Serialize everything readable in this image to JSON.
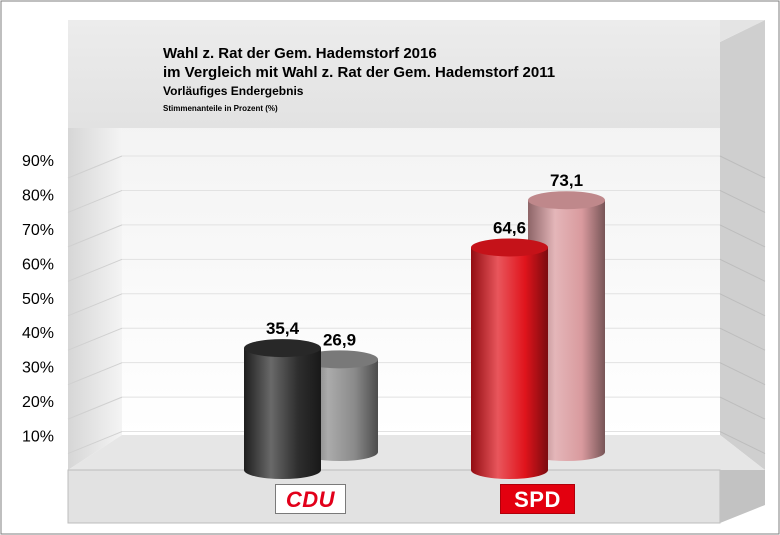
{
  "title_lines": [
    "Wahl z. Rat der Gem. Hademstorf 2016",
    "im Vergleich mit Wahl z. Rat der Gem. Hademstorf 2011"
  ],
  "subtitle": "Vorläufiges Endergebnis",
  "note": "Stimmenanteile in Prozent (%)",
  "chart_data": {
    "type": "bar",
    "title": "Wahl z. Rat der Gem. Hademstorf 2016 im Vergleich mit Wahl z. Rat der Gem. Hademstorf 2011",
    "subtitle": "Vorläufiges Endergebnis",
    "ylabel": "Stimmenanteile in Prozent (%)",
    "xlabel": "",
    "categories": [
      "CDU",
      "SPD"
    ],
    "series": [
      {
        "values": [
          35.4,
          64.6
        ],
        "labels": [
          "35,4",
          "64,6"
        ]
      },
      {
        "values": [
          26.9,
          73.1
        ],
        "labels": [
          "26,9",
          "73,1"
        ]
      }
    ],
    "ylim": [
      0,
      90
    ],
    "yticks": [
      10,
      20,
      30,
      40,
      50,
      60,
      70,
      80,
      90
    ],
    "ytick_labels": [
      "10%",
      "20%",
      "30%",
      "40%",
      "50%",
      "60%",
      "70%",
      "80%",
      "90%"
    ],
    "grid": true,
    "colors": {
      "CDU": [
        "#2e2e2e",
        "#8a8a8a"
      ],
      "SPD": [
        "#e0141c",
        "#d99a9e"
      ]
    }
  }
}
